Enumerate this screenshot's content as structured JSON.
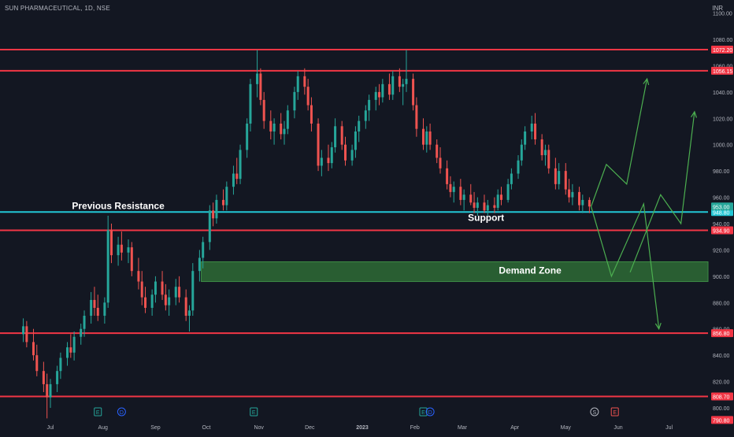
{
  "header": {
    "title": "SUN PHARMACEUTICAL, 1D, NSE",
    "currency": "INR"
  },
  "colors": {
    "background": "#131722",
    "up": "#26a69a",
    "down": "#ef5350",
    "resistance_line": "#f23645",
    "support_line": "#22c7d6",
    "zone_fill": "#2e6b35",
    "projection": "#4caf50",
    "axis_text": "#b2b5be"
  },
  "chart_data": {
    "type": "candlestick",
    "title": "SUN PHARMACEUTICAL, 1D, NSE",
    "ylabel": "INR",
    "ylim": [
      795,
      1105
    ],
    "y_ticks": [
      800,
      820,
      840,
      860,
      880,
      900,
      920,
      940,
      960,
      980,
      1000,
      1020,
      1040,
      1060,
      1080,
      1100
    ],
    "x_ticks": [
      "Jul",
      "Aug",
      "Sep",
      "Oct",
      "Nov",
      "Dec",
      "2023",
      "Feb",
      "Mar",
      "Apr",
      "May",
      "Jun",
      "Jul"
    ],
    "last_price": "953.00",
    "price_labels": [
      {
        "value": 1072.2,
        "text": "1072.20",
        "kind": "resistance"
      },
      {
        "value": 1056.15,
        "text": "1056.15",
        "kind": "resistance"
      },
      {
        "value": 948.8,
        "text": "948.80",
        "kind": "support"
      },
      {
        "value": 934.9,
        "text": "934.90",
        "kind": "resistance"
      },
      {
        "value": 856.8,
        "text": "856.80",
        "kind": "resistance"
      },
      {
        "value": 808.7,
        "text": "808.70",
        "kind": "resistance"
      },
      {
        "value": 790.8,
        "text": "790.80",
        "kind": "resistance"
      }
    ],
    "levels": [
      {
        "value": 1072.2,
        "kind": "resistance"
      },
      {
        "value": 1056.15,
        "kind": "resistance"
      },
      {
        "value": 948.8,
        "kind": "support"
      },
      {
        "value": 934.9,
        "kind": "resistance"
      },
      {
        "value": 856.8,
        "kind": "resistance"
      },
      {
        "value": 808.7,
        "kind": "resistance"
      }
    ],
    "annotations": [
      {
        "text": "Previous Resistance",
        "x": "2022-08-10",
        "y": 951
      },
      {
        "text": "Support",
        "x": "2023-03-15",
        "y": 942
      },
      {
        "text": "Demand Zone",
        "x": "2023-04-10",
        "y": 902
      }
    ],
    "demand_zone": {
      "y_low": 896,
      "y_high": 911,
      "x_start": "2022-09-28"
    },
    "zone_rows": [
      {
        "x_start": "2022-06-10",
        "x_end": "2022-09-28",
        "y": 948.8,
        "kind": "support",
        "label": "Previous Resistance"
      }
    ],
    "event_markers": [
      {
        "x": "2022-07-29",
        "icon": "E"
      },
      {
        "x": "2022-08-12",
        "icon": "D"
      },
      {
        "x": "2022-10-29",
        "icon": "E"
      },
      {
        "x": "2023-02-06",
        "icon": "E"
      },
      {
        "x": "2023-02-10",
        "icon": "D"
      },
      {
        "x": "2023-05-18",
        "icon": "S"
      },
      {
        "x": "2023-05-30",
        "icon": "E"
      }
    ],
    "projections": [
      {
        "points": [
          [
            "2023-05-16",
            953
          ],
          [
            "2023-05-25",
            985
          ],
          [
            "2023-06-06",
            970
          ],
          [
            "2023-06-18",
            1050
          ]
        ]
      },
      {
        "points": [
          [
            "2023-05-16",
            953
          ],
          [
            "2023-05-28",
            900
          ],
          [
            "2023-06-16",
            955
          ],
          [
            "2023-06-25",
            860
          ]
        ]
      },
      {
        "points": [
          [
            "2023-06-08",
            903
          ],
          [
            "2023-06-26",
            962
          ],
          [
            "2023-07-08",
            940
          ],
          [
            "2023-07-16",
            1025
          ]
        ]
      }
    ],
    "candles": [
      {
        "d": "2022-06-15",
        "o": 856,
        "h": 868,
        "l": 850,
        "c": 862
      },
      {
        "d": "2022-06-17",
        "o": 862,
        "h": 866,
        "l": 846,
        "c": 850
      },
      {
        "d": "2022-06-21",
        "o": 850,
        "h": 860,
        "l": 836,
        "c": 840
      },
      {
        "d": "2022-06-23",
        "o": 840,
        "h": 848,
        "l": 824,
        "c": 828
      },
      {
        "d": "2022-06-27",
        "o": 828,
        "h": 835,
        "l": 812,
        "c": 818
      },
      {
        "d": "2022-06-29",
        "o": 818,
        "h": 826,
        "l": 792,
        "c": 808
      },
      {
        "d": "2022-07-01",
        "o": 808,
        "h": 822,
        "l": 800,
        "c": 818
      },
      {
        "d": "2022-07-05",
        "o": 818,
        "h": 832,
        "l": 812,
        "c": 828
      },
      {
        "d": "2022-07-07",
        "o": 828,
        "h": 842,
        "l": 822,
        "c": 838
      },
      {
        "d": "2022-07-11",
        "o": 838,
        "h": 850,
        "l": 832,
        "c": 846
      },
      {
        "d": "2022-07-13",
        "o": 846,
        "h": 856,
        "l": 838,
        "c": 842
      },
      {
        "d": "2022-07-15",
        "o": 842,
        "h": 858,
        "l": 836,
        "c": 854
      },
      {
        "d": "2022-07-19",
        "o": 854,
        "h": 864,
        "l": 848,
        "c": 860
      },
      {
        "d": "2022-07-21",
        "o": 860,
        "h": 874,
        "l": 854,
        "c": 870
      },
      {
        "d": "2022-07-25",
        "o": 870,
        "h": 888,
        "l": 864,
        "c": 882
      },
      {
        "d": "2022-07-27",
        "o": 882,
        "h": 892,
        "l": 870,
        "c": 876
      },
      {
        "d": "2022-07-29",
        "o": 876,
        "h": 886,
        "l": 866,
        "c": 870
      },
      {
        "d": "2022-08-02",
        "o": 870,
        "h": 884,
        "l": 864,
        "c": 880
      },
      {
        "d": "2022-08-04",
        "o": 880,
        "h": 946,
        "l": 876,
        "c": 935
      },
      {
        "d": "2022-08-06",
        "o": 935,
        "h": 940,
        "l": 910,
        "c": 916
      },
      {
        "d": "2022-08-10",
        "o": 916,
        "h": 930,
        "l": 908,
        "c": 924
      },
      {
        "d": "2022-08-12",
        "o": 924,
        "h": 934,
        "l": 912,
        "c": 918
      },
      {
        "d": "2022-08-16",
        "o": 918,
        "h": 928,
        "l": 910,
        "c": 922
      },
      {
        "d": "2022-08-18",
        "o": 922,
        "h": 926,
        "l": 900,
        "c": 904
      },
      {
        "d": "2022-08-22",
        "o": 904,
        "h": 914,
        "l": 890,
        "c": 896
      },
      {
        "d": "2022-08-24",
        "o": 896,
        "h": 904,
        "l": 878,
        "c": 884
      },
      {
        "d": "2022-08-26",
        "o": 884,
        "h": 892,
        "l": 872,
        "c": 876
      },
      {
        "d": "2022-08-30",
        "o": 876,
        "h": 890,
        "l": 870,
        "c": 886
      },
      {
        "d": "2022-09-01",
        "o": 886,
        "h": 900,
        "l": 880,
        "c": 896
      },
      {
        "d": "2022-09-05",
        "o": 896,
        "h": 904,
        "l": 882,
        "c": 886
      },
      {
        "d": "2022-09-07",
        "o": 886,
        "h": 894,
        "l": 874,
        "c": 878
      },
      {
        "d": "2022-09-09",
        "o": 878,
        "h": 890,
        "l": 870,
        "c": 884
      },
      {
        "d": "2022-09-13",
        "o": 884,
        "h": 898,
        "l": 878,
        "c": 892
      },
      {
        "d": "2022-09-15",
        "o": 892,
        "h": 900,
        "l": 880,
        "c": 884
      },
      {
        "d": "2022-09-19",
        "o": 884,
        "h": 890,
        "l": 866,
        "c": 870
      },
      {
        "d": "2022-09-21",
        "o": 870,
        "h": 878,
        "l": 858,
        "c": 874
      },
      {
        "d": "2022-09-23",
        "o": 874,
        "h": 910,
        "l": 870,
        "c": 904
      },
      {
        "d": "2022-09-27",
        "o": 904,
        "h": 920,
        "l": 896,
        "c": 914
      },
      {
        "d": "2022-09-29",
        "o": 914,
        "h": 930,
        "l": 906,
        "c": 926
      },
      {
        "d": "2022-10-03",
        "o": 926,
        "h": 954,
        "l": 920,
        "c": 950
      },
      {
        "d": "2022-10-05",
        "o": 950,
        "h": 956,
        "l": 938,
        "c": 944
      },
      {
        "d": "2022-10-07",
        "o": 944,
        "h": 962,
        "l": 940,
        "c": 958
      },
      {
        "d": "2022-10-11",
        "o": 958,
        "h": 966,
        "l": 950,
        "c": 954
      },
      {
        "d": "2022-10-13",
        "o": 954,
        "h": 972,
        "l": 950,
        "c": 968
      },
      {
        "d": "2022-10-17",
        "o": 968,
        "h": 984,
        "l": 962,
        "c": 978
      },
      {
        "d": "2022-10-19",
        "o": 978,
        "h": 990,
        "l": 970,
        "c": 974
      },
      {
        "d": "2022-10-21",
        "o": 974,
        "h": 1000,
        "l": 970,
        "c": 996
      },
      {
        "d": "2022-10-25",
        "o": 996,
        "h": 1020,
        "l": 990,
        "c": 1016
      },
      {
        "d": "2022-10-27",
        "o": 1016,
        "h": 1050,
        "l": 1010,
        "c": 1046
      },
      {
        "d": "2022-10-31",
        "o": 1046,
        "h": 1072,
        "l": 1036,
        "c": 1054
      },
      {
        "d": "2022-11-02",
        "o": 1054,
        "h": 1058,
        "l": 1030,
        "c": 1034
      },
      {
        "d": "2022-11-04",
        "o": 1034,
        "h": 1040,
        "l": 1012,
        "c": 1018
      },
      {
        "d": "2022-11-08",
        "o": 1018,
        "h": 1026,
        "l": 1004,
        "c": 1010
      },
      {
        "d": "2022-11-10",
        "o": 1010,
        "h": 1020,
        "l": 1000,
        "c": 1016
      },
      {
        "d": "2022-11-14",
        "o": 1016,
        "h": 1024,
        "l": 1004,
        "c": 1008
      },
      {
        "d": "2022-11-16",
        "o": 1008,
        "h": 1018,
        "l": 1000,
        "c": 1012
      },
      {
        "d": "2022-11-18",
        "o": 1012,
        "h": 1030,
        "l": 1008,
        "c": 1026
      },
      {
        "d": "2022-11-22",
        "o": 1026,
        "h": 1044,
        "l": 1020,
        "c": 1040
      },
      {
        "d": "2022-11-24",
        "o": 1040,
        "h": 1056,
        "l": 1034,
        "c": 1052
      },
      {
        "d": "2022-11-28",
        "o": 1052,
        "h": 1058,
        "l": 1038,
        "c": 1044
      },
      {
        "d": "2022-11-30",
        "o": 1044,
        "h": 1050,
        "l": 1026,
        "c": 1030
      },
      {
        "d": "2022-12-02",
        "o": 1030,
        "h": 1036,
        "l": 1010,
        "c": 1016
      },
      {
        "d": "2022-12-06",
        "o": 1016,
        "h": 1020,
        "l": 980,
        "c": 984
      },
      {
        "d": "2022-12-08",
        "o": 984,
        "h": 996,
        "l": 976,
        "c": 990
      },
      {
        "d": "2022-12-12",
        "o": 990,
        "h": 1000,
        "l": 980,
        "c": 986
      },
      {
        "d": "2022-12-14",
        "o": 986,
        "h": 1002,
        "l": 982,
        "c": 998
      },
      {
        "d": "2022-12-16",
        "o": 998,
        "h": 1020,
        "l": 994,
        "c": 1014
      },
      {
        "d": "2022-12-20",
        "o": 1014,
        "h": 1018,
        "l": 996,
        "c": 1000
      },
      {
        "d": "2022-12-22",
        "o": 1000,
        "h": 1006,
        "l": 984,
        "c": 988
      },
      {
        "d": "2022-12-26",
        "o": 988,
        "h": 1000,
        "l": 984,
        "c": 996
      },
      {
        "d": "2022-12-28",
        "o": 996,
        "h": 1014,
        "l": 990,
        "c": 1010
      },
      {
        "d": "2022-12-30",
        "o": 1010,
        "h": 1022,
        "l": 1002,
        "c": 1018
      },
      {
        "d": "2023-01-03",
        "o": 1018,
        "h": 1030,
        "l": 1012,
        "c": 1026
      },
      {
        "d": "2023-01-05",
        "o": 1026,
        "h": 1038,
        "l": 1018,
        "c": 1034
      },
      {
        "d": "2023-01-09",
        "o": 1034,
        "h": 1044,
        "l": 1026,
        "c": 1040
      },
      {
        "d": "2023-01-11",
        "o": 1040,
        "h": 1046,
        "l": 1030,
        "c": 1036
      },
      {
        "d": "2023-01-13",
        "o": 1036,
        "h": 1050,
        "l": 1032,
        "c": 1046
      },
      {
        "d": "2023-01-17",
        "o": 1046,
        "h": 1054,
        "l": 1034,
        "c": 1038
      },
      {
        "d": "2023-01-19",
        "o": 1038,
        "h": 1056,
        "l": 1034,
        "c": 1052
      },
      {
        "d": "2023-01-23",
        "o": 1052,
        "h": 1058,
        "l": 1040,
        "c": 1044
      },
      {
        "d": "2023-01-25",
        "o": 1044,
        "h": 1050,
        "l": 1030,
        "c": 1046
      },
      {
        "d": "2023-01-27",
        "o": 1046,
        "h": 1072,
        "l": 1040,
        "c": 1050
      },
      {
        "d": "2023-01-31",
        "o": 1050,
        "h": 1054,
        "l": 1026,
        "c": 1030
      },
      {
        "d": "2023-02-02",
        "o": 1030,
        "h": 1036,
        "l": 1006,
        "c": 1012
      },
      {
        "d": "2023-02-06",
        "o": 1012,
        "h": 1020,
        "l": 996,
        "c": 1000
      },
      {
        "d": "2023-02-08",
        "o": 1000,
        "h": 1014,
        "l": 994,
        "c": 1010
      },
      {
        "d": "2023-02-10",
        "o": 1010,
        "h": 1016,
        "l": 996,
        "c": 1000
      },
      {
        "d": "2023-02-14",
        "o": 1000,
        "h": 1004,
        "l": 986,
        "c": 990
      },
      {
        "d": "2023-02-16",
        "o": 990,
        "h": 998,
        "l": 978,
        "c": 982
      },
      {
        "d": "2023-02-20",
        "o": 982,
        "h": 988,
        "l": 966,
        "c": 970
      },
      {
        "d": "2023-02-22",
        "o": 970,
        "h": 976,
        "l": 960,
        "c": 964
      },
      {
        "d": "2023-02-24",
        "o": 964,
        "h": 972,
        "l": 956,
        "c": 968
      },
      {
        "d": "2023-02-28",
        "o": 968,
        "h": 974,
        "l": 954,
        "c": 958
      },
      {
        "d": "2023-03-02",
        "o": 958,
        "h": 966,
        "l": 950,
        "c": 962
      },
      {
        "d": "2023-03-06",
        "o": 962,
        "h": 970,
        "l": 954,
        "c": 956
      },
      {
        "d": "2023-03-08",
        "o": 956,
        "h": 964,
        "l": 948,
        "c": 952
      },
      {
        "d": "2023-03-10",
        "o": 952,
        "h": 960,
        "l": 946,
        "c": 956
      },
      {
        "d": "2023-03-14",
        "o": 956,
        "h": 962,
        "l": 948,
        "c": 950
      },
      {
        "d": "2023-03-16",
        "o": 950,
        "h": 958,
        "l": 946,
        "c": 954
      },
      {
        "d": "2023-03-20",
        "o": 954,
        "h": 960,
        "l": 948,
        "c": 952
      },
      {
        "d": "2023-03-22",
        "o": 952,
        "h": 966,
        "l": 950,
        "c": 962
      },
      {
        "d": "2023-03-24",
        "o": 962,
        "h": 968,
        "l": 954,
        "c": 958
      },
      {
        "d": "2023-03-28",
        "o": 958,
        "h": 974,
        "l": 956,
        "c": 970
      },
      {
        "d": "2023-03-30",
        "o": 970,
        "h": 982,
        "l": 966,
        "c": 978
      },
      {
        "d": "2023-04-03",
        "o": 978,
        "h": 992,
        "l": 974,
        "c": 988
      },
      {
        "d": "2023-04-05",
        "o": 988,
        "h": 1004,
        "l": 984,
        "c": 1000
      },
      {
        "d": "2023-04-07",
        "o": 1000,
        "h": 1014,
        "l": 996,
        "c": 1010
      },
      {
        "d": "2023-04-11",
        "o": 1010,
        "h": 1022,
        "l": 1004,
        "c": 1016
      },
      {
        "d": "2023-04-13",
        "o": 1016,
        "h": 1024,
        "l": 1000,
        "c": 1004
      },
      {
        "d": "2023-04-17",
        "o": 1004,
        "h": 1008,
        "l": 988,
        "c": 992
      },
      {
        "d": "2023-04-19",
        "o": 992,
        "h": 1000,
        "l": 984,
        "c": 996
      },
      {
        "d": "2023-04-21",
        "o": 996,
        "h": 1000,
        "l": 978,
        "c": 982
      },
      {
        "d": "2023-04-25",
        "o": 982,
        "h": 990,
        "l": 966,
        "c": 970
      },
      {
        "d": "2023-04-27",
        "o": 970,
        "h": 986,
        "l": 966,
        "c": 980
      },
      {
        "d": "2023-05-01",
        "o": 980,
        "h": 986,
        "l": 962,
        "c": 966
      },
      {
        "d": "2023-05-03",
        "o": 966,
        "h": 974,
        "l": 956,
        "c": 960
      },
      {
        "d": "2023-05-05",
        "o": 960,
        "h": 970,
        "l": 954,
        "c": 964
      },
      {
        "d": "2023-05-09",
        "o": 964,
        "h": 968,
        "l": 950,
        "c": 954
      },
      {
        "d": "2023-05-11",
        "o": 954,
        "h": 962,
        "l": 948,
        "c": 958
      },
      {
        "d": "2023-05-15",
        "o": 958,
        "h": 960,
        "l": 948,
        "c": 953
      }
    ]
  }
}
